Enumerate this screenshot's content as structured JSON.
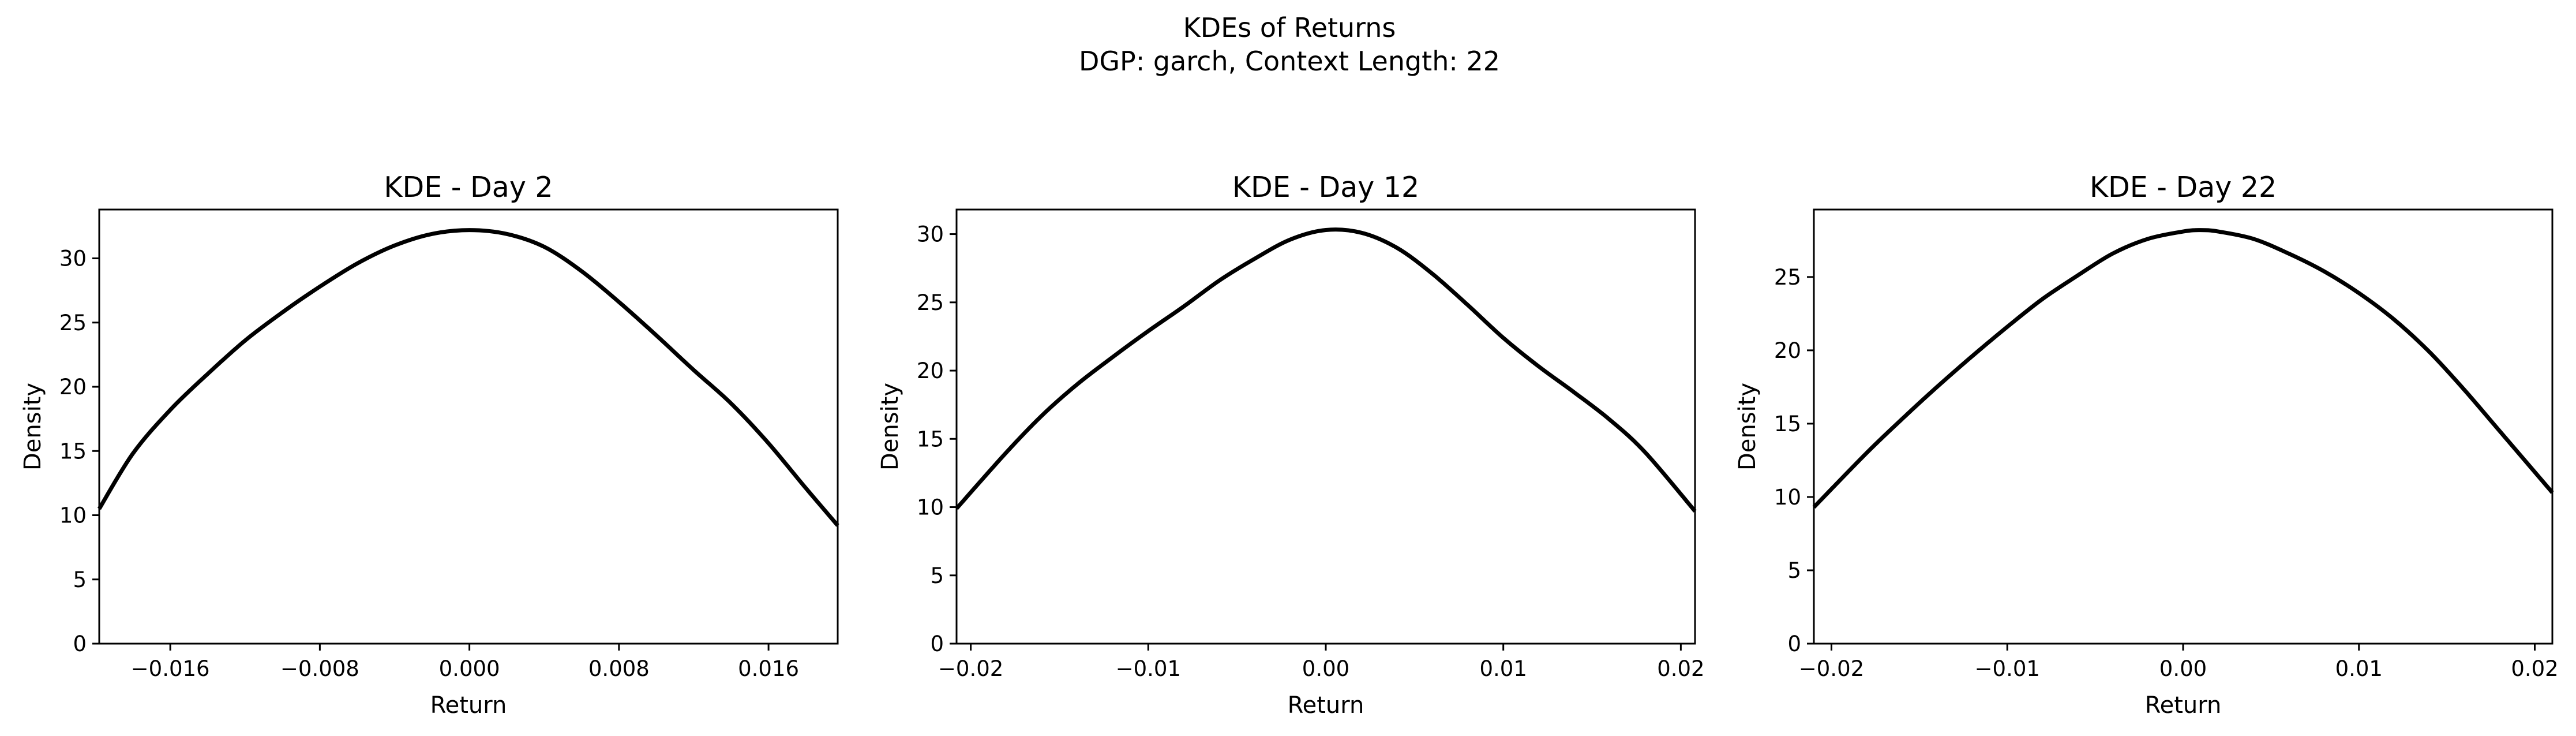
{
  "figure": {
    "title_lines": [
      "KDEs of Returns",
      "DGP: garch, Context Length: 22"
    ]
  },
  "colors": {
    "background": "#ffffff",
    "line": "#000000",
    "axes": "#000000"
  },
  "chart_data": [
    {
      "type": "line",
      "title": "KDE - Day 2",
      "xlabel": "Return",
      "ylabel": "Density",
      "xlim": [
        -0.0198,
        0.0197
      ],
      "ylim": [
        0,
        33.8
      ],
      "xticks": [
        -0.016,
        -0.008,
        0.0,
        0.008,
        0.016
      ],
      "xtick_labels": [
        "−0.016",
        "−0.008",
        "0.000",
        "0.008",
        "0.016"
      ],
      "yticks": [
        0,
        5,
        10,
        15,
        20,
        25,
        30
      ],
      "ytick_labels": [
        "0",
        "5",
        "10",
        "15",
        "20",
        "25",
        "30"
      ],
      "grid": false,
      "series": [
        {
          "x": [
            -0.0198,
            -0.018,
            -0.016,
            -0.014,
            -0.012,
            -0.01,
            -0.008,
            -0.006,
            -0.004,
            -0.002,
            0.0,
            0.002,
            0.004,
            0.006,
            0.008,
            0.01,
            0.012,
            0.014,
            0.016,
            0.018,
            0.0197
          ],
          "y": [
            10.5,
            14.8,
            18.2,
            21.0,
            23.6,
            25.8,
            27.8,
            29.6,
            31.0,
            31.9,
            32.2,
            31.9,
            30.9,
            29.0,
            26.6,
            24.0,
            21.3,
            18.7,
            15.6,
            12.1,
            9.2
          ]
        }
      ]
    },
    {
      "type": "line",
      "title": "KDE - Day 12",
      "xlabel": "Return",
      "ylabel": "Density",
      "xlim": [
        -0.0208,
        0.0208
      ],
      "ylim": [
        0,
        31.8
      ],
      "xticks": [
        -0.02,
        -0.01,
        0.0,
        0.01,
        0.02
      ],
      "xtick_labels": [
        "−0.02",
        "−0.01",
        "0.00",
        "0.01",
        "0.02"
      ],
      "yticks": [
        0,
        5,
        10,
        15,
        20,
        25,
        30
      ],
      "ytick_labels": [
        "0",
        "5",
        "10",
        "15",
        "20",
        "25",
        "30"
      ],
      "grid": false,
      "series": [
        {
          "x": [
            -0.0208,
            -0.018,
            -0.016,
            -0.014,
            -0.012,
            -0.01,
            -0.008,
            -0.006,
            -0.004,
            -0.002,
            0.0,
            0.002,
            0.004,
            0.006,
            0.008,
            0.01,
            0.012,
            0.014,
            0.016,
            0.018,
            0.0208
          ],
          "y": [
            9.9,
            14.0,
            16.7,
            19.0,
            21.0,
            22.9,
            24.7,
            26.6,
            28.2,
            29.6,
            30.3,
            30.1,
            29.0,
            27.1,
            24.8,
            22.4,
            20.3,
            18.4,
            16.4,
            14.0,
            9.7
          ]
        }
      ]
    },
    {
      "type": "line",
      "title": "KDE - Day 22",
      "xlabel": "Return",
      "ylabel": "Density",
      "xlim": [
        -0.021,
        0.021
      ],
      "ylim": [
        0,
        29.6
      ],
      "xticks": [
        -0.02,
        -0.01,
        0.0,
        0.01,
        0.02
      ],
      "xtick_labels": [
        "−0.02",
        "−0.01",
        "0.00",
        "0.01",
        "0.02"
      ],
      "yticks": [
        0,
        5,
        10,
        15,
        20,
        25
      ],
      "ytick_labels": [
        "0",
        "5",
        "10",
        "15",
        "20",
        "25"
      ],
      "grid": false,
      "series": [
        {
          "x": [
            -0.021,
            -0.018,
            -0.016,
            -0.014,
            -0.012,
            -0.01,
            -0.008,
            -0.006,
            -0.004,
            -0.002,
            0.0,
            0.001,
            0.002,
            0.004,
            0.006,
            0.008,
            0.01,
            0.012,
            0.014,
            0.016,
            0.018,
            0.021
          ],
          "y": [
            9.3,
            13.0,
            15.3,
            17.5,
            19.6,
            21.6,
            23.5,
            25.1,
            26.6,
            27.6,
            28.1,
            28.2,
            28.1,
            27.6,
            26.6,
            25.4,
            23.9,
            22.1,
            19.9,
            17.3,
            14.5,
            10.3
          ]
        }
      ]
    }
  ]
}
